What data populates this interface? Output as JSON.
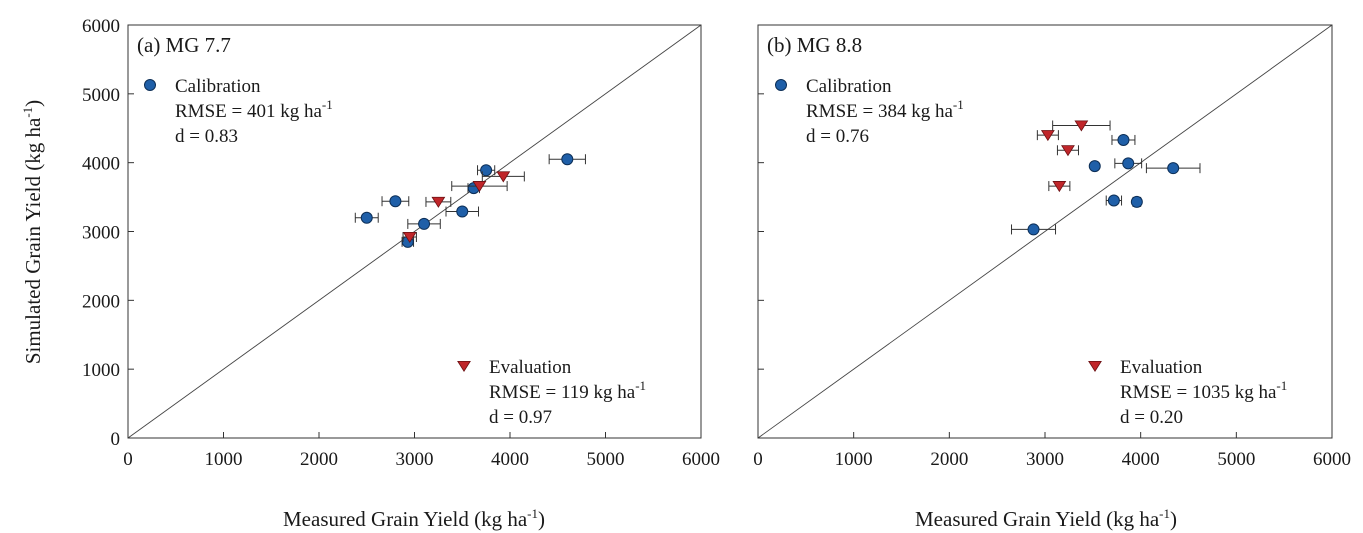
{
  "y_axis_title": "Simulated Grain Yield (kg ha",
  "x_axis_title": "Measured Grain Yield (kg ha",
  "unit_exponent": "-1",
  "colors": {
    "calibration": "#1f5fa8",
    "evaluation": "#c0262a",
    "axis": "#333333"
  },
  "chart_data": [
    {
      "type": "scatter",
      "panel_label": "(a) MG 7.7",
      "xlabel": "Measured Grain Yield (kg ha-1)",
      "ylabel": "Simulated Grain Yield (kg ha-1)",
      "xlim": [
        0,
        6000
      ],
      "ylim": [
        0,
        6000
      ],
      "xticks": [
        "0",
        "1000",
        "2000",
        "3000",
        "4000",
        "5000",
        "6000"
      ],
      "yticks": [
        "0",
        "1000",
        "2000",
        "3000",
        "4000",
        "5000",
        "6000"
      ],
      "one_to_one_line": true,
      "grid": false,
      "calibration": {
        "name": "Calibration",
        "marker": "circle",
        "rmse_text": "RMSE = 401 kg ha",
        "d_text": "d = 0.83",
        "points": [
          {
            "x": 2500,
            "y": 3200,
            "xerr": 120
          },
          {
            "x": 2800,
            "y": 3440,
            "xerr": 140
          },
          {
            "x": 2930,
            "y": 2850,
            "xerr": 60
          },
          {
            "x": 3100,
            "y": 3110,
            "xerr": 170
          },
          {
            "x": 3500,
            "y": 3290,
            "xerr": 170
          },
          {
            "x": 3620,
            "y": 3630,
            "xerr": 60
          },
          {
            "x": 3750,
            "y": 3890,
            "xerr": 90
          },
          {
            "x": 4600,
            "y": 4050,
            "xerr": 190
          }
        ]
      },
      "evaluation": {
        "name": "Evaluation",
        "marker": "triangle-down",
        "rmse_text": "RMSE = 119 kg ha",
        "d_text": "d = 0.97",
        "points": [
          {
            "x": 2950,
            "y": 2920,
            "xerr": 70
          },
          {
            "x": 3250,
            "y": 3430,
            "xerr": 130
          },
          {
            "x": 3680,
            "y": 3660,
            "xerr": 290
          },
          {
            "x": 3930,
            "y": 3800,
            "xerr": 220
          }
        ]
      }
    },
    {
      "type": "scatter",
      "panel_label": "(b) MG 8.8",
      "xlabel": "Measured Grain Yield (kg ha-1)",
      "ylabel": "",
      "xlim": [
        0,
        6000
      ],
      "ylim": [
        0,
        6000
      ],
      "xticks": [
        "0",
        "1000",
        "2000",
        "3000",
        "4000",
        "5000",
        "6000"
      ],
      "yticks": [],
      "one_to_one_line": true,
      "grid": false,
      "calibration": {
        "name": "Calibration",
        "marker": "circle",
        "rmse_text": "RMSE = 384 kg ha",
        "d_text": "d = 0.76",
        "points": [
          {
            "x": 2880,
            "y": 3030,
            "xerr": 230
          },
          {
            "x": 3520,
            "y": 3950,
            "xerr": 30
          },
          {
            "x": 3720,
            "y": 3450,
            "xerr": 80
          },
          {
            "x": 3820,
            "y": 4330,
            "xerr": 120
          },
          {
            "x": 3870,
            "y": 3990,
            "xerr": 140
          },
          {
            "x": 3960,
            "y": 3430,
            "xerr": 40
          },
          {
            "x": 4340,
            "y": 3920,
            "xerr": 280
          }
        ]
      },
      "evaluation": {
        "name": "Evaluation",
        "marker": "triangle-down",
        "rmse_text": "RMSE = 1035 kg ha",
        "d_text": "d = 0.20",
        "points": [
          {
            "x": 3030,
            "y": 4400,
            "xerr": 110
          },
          {
            "x": 3150,
            "y": 3660,
            "xerr": 110
          },
          {
            "x": 3240,
            "y": 4180,
            "xerr": 110
          },
          {
            "x": 3380,
            "y": 4540,
            "xerr": 300
          }
        ]
      }
    }
  ]
}
